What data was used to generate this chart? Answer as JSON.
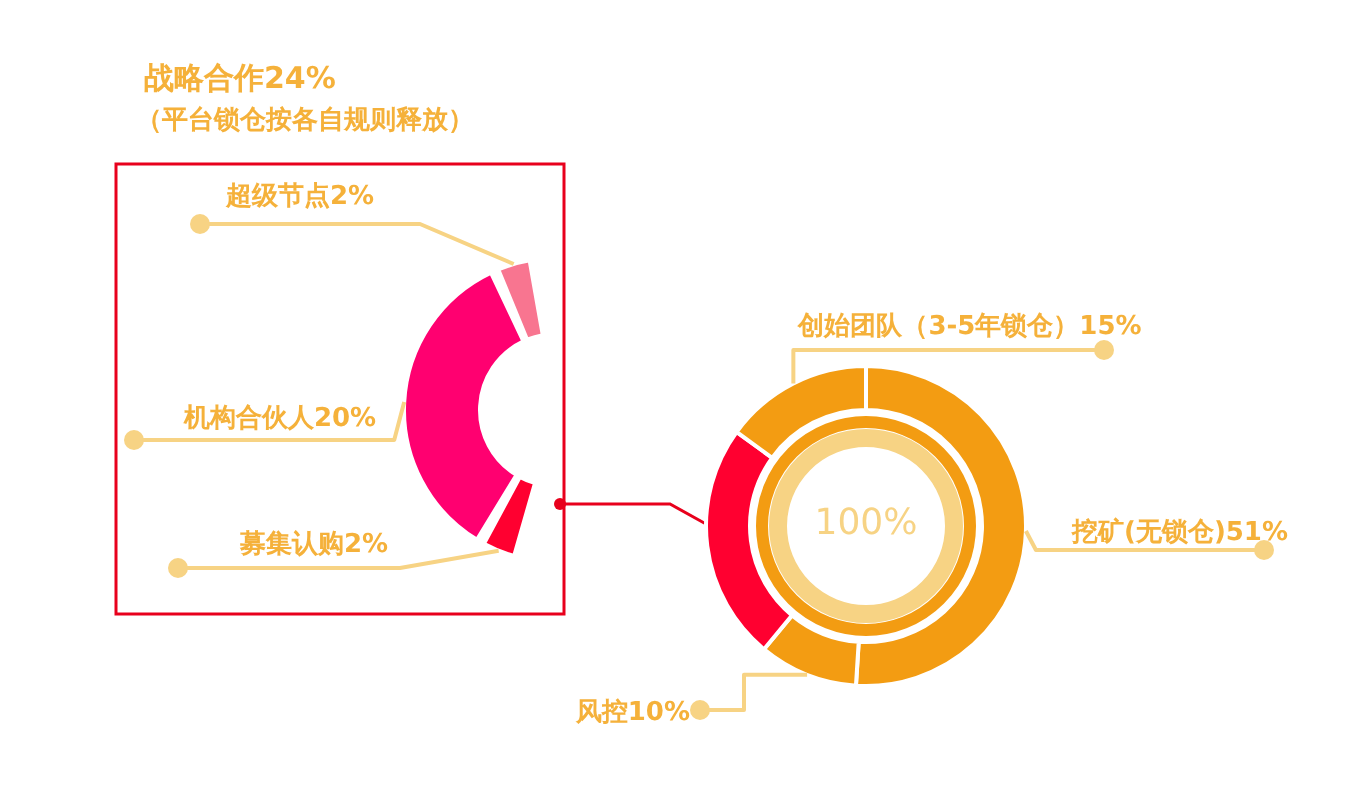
{
  "chart_data": [
    {
      "type": "donut",
      "title": "战略合作24%",
      "subtitle": "（平台锁仓按各自规则释放）",
      "categories": [
        "超级节点",
        "机构合伙人",
        "募集认购"
      ],
      "values": [
        2,
        20,
        2
      ],
      "colors": [
        "#f87590",
        "#ff0070",
        "#ff0030"
      ],
      "value_labels": [
        "2%",
        "20%",
        "2%"
      ]
    },
    {
      "type": "donut",
      "categories": [
        "挖矿(无锁仓)",
        "风控",
        null,
        "创始团队（3-5年锁仓）"
      ],
      "values": [
        51,
        10,
        24,
        15
      ],
      "colors": [
        "#f39c12",
        "#f39c12",
        "#ff0030",
        "#f39c12"
      ],
      "value_labels": [
        "51%",
        "10%",
        null,
        "15%"
      ],
      "annotations": [
        "100%"
      ]
    }
  ]
}
